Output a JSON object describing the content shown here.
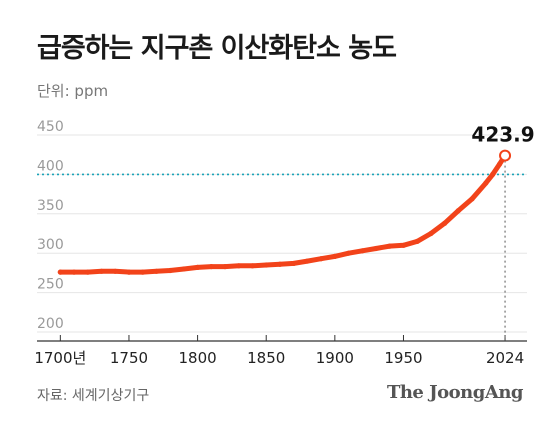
{
  "title": "급증하는 지구촌 이산화탄소 농도",
  "unit_label": "단위: ppm",
  "source": "자료: 세계기상기구",
  "brand": "The JoongAng",
  "colors": {
    "line": "#f2431a",
    "reference_line": "#1aa3b8",
    "grid": "#e6e6e6",
    "axis": "#666666"
  },
  "chart_data": {
    "type": "line",
    "title": "급증하는 지구촌 이산화탄소 농도",
    "ylabel": "단위: ppm",
    "xlabel": "",
    "x_tick_labels": [
      "1700년",
      "1750",
      "1800",
      "1850",
      "1900",
      "1950",
      "2024"
    ],
    "x_ticks": [
      1700,
      1750,
      1800,
      1850,
      1900,
      1950,
      2024
    ],
    "y_ticks": [
      200,
      250,
      300,
      350,
      400,
      450
    ],
    "ylim": [
      200,
      450
    ],
    "xlim": [
      1683,
      2040
    ],
    "grid": true,
    "reference_line_y": 400,
    "highlight": {
      "x": 2024,
      "y": 423.9,
      "label": "423.9"
    },
    "series": [
      {
        "x": [
          1700,
          1710,
          1720,
          1730,
          1740,
          1750,
          1760,
          1770,
          1780,
          1790,
          1800,
          1810,
          1820,
          1830,
          1840,
          1850,
          1860,
          1870,
          1880,
          1890,
          1900,
          1910,
          1920,
          1930,
          1940,
          1950,
          1960,
          1970,
          1980,
          1990,
          2000,
          2010,
          2015,
          2020,
          2024
        ],
        "values": [
          276,
          276,
          276,
          277,
          277,
          276,
          276,
          277,
          278,
          280,
          282,
          283,
          283,
          284,
          284,
          285,
          286,
          287,
          290,
          293,
          296,
          300,
          303,
          306,
          309,
          310,
          315,
          325,
          338,
          354,
          369,
          389,
          400,
          413,
          423.9
        ]
      }
    ]
  }
}
